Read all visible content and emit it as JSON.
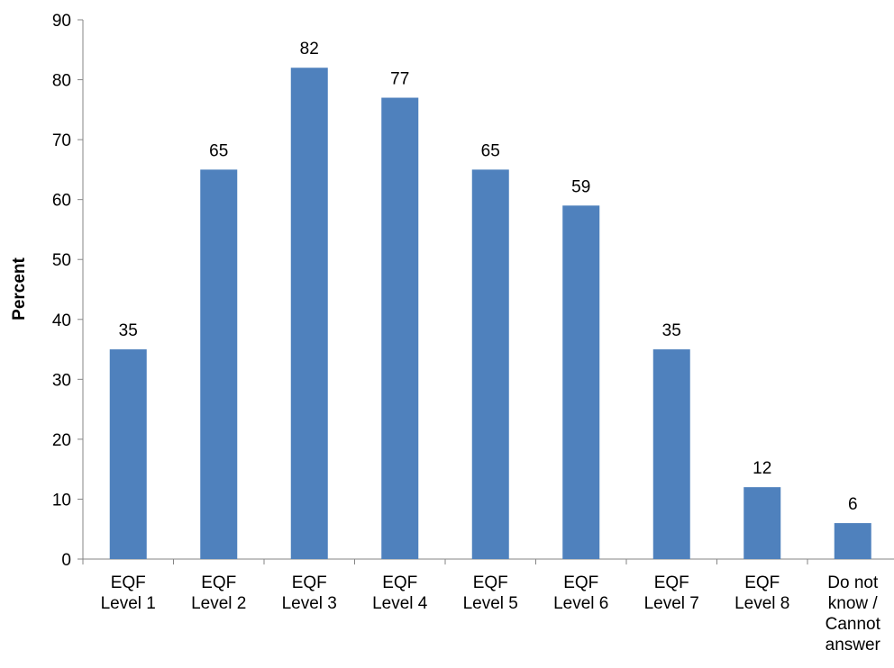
{
  "chart_data": {
    "type": "bar",
    "title": "",
    "xlabel": "",
    "ylabel": "Percent",
    "ylim": [
      0,
      90
    ],
    "yticks": [
      0,
      10,
      20,
      30,
      40,
      50,
      60,
      70,
      80,
      90
    ],
    "ytick_labels": [
      "0",
      "10",
      "20",
      "30",
      "40",
      "50",
      "60",
      "70",
      "80",
      "90"
    ],
    "grid": false,
    "legend": "none",
    "bar_color": "#4f81bd",
    "categories": [
      [
        "EQF",
        "Level 1"
      ],
      [
        "EQF",
        "Level 2"
      ],
      [
        "EQF",
        "Level 3"
      ],
      [
        "EQF",
        "Level 4"
      ],
      [
        "EQF",
        "Level 5"
      ],
      [
        "EQF",
        "Level 6"
      ],
      [
        "EQF",
        "Level 7"
      ],
      [
        "EQF",
        "Level 8"
      ],
      [
        "Do not",
        "know /",
        "Cannot",
        "answer"
      ]
    ],
    "values": [
      35,
      65,
      82,
      77,
      65,
      59,
      35,
      12,
      6
    ],
    "data_labels": [
      "35",
      "65",
      "82",
      "77",
      "65",
      "59",
      "35",
      "12",
      "6"
    ]
  }
}
